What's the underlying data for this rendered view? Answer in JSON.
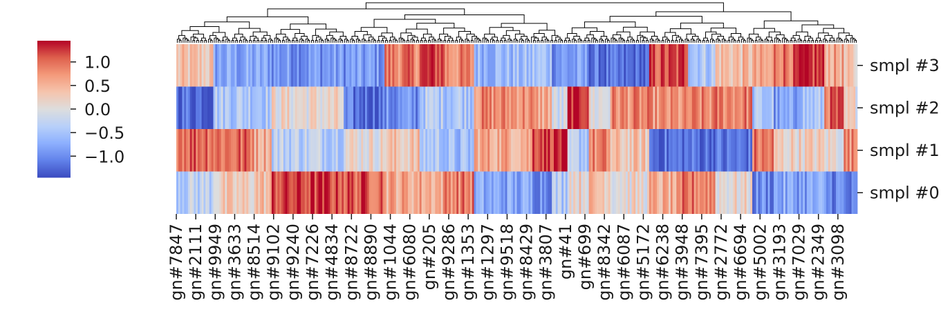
{
  "chart_data": {
    "type": "heatmap",
    "colormap": "coolwarm",
    "vmin": -1.45,
    "vmax": 1.45,
    "rows": [
      "smpl #3",
      "smpl #2",
      "smpl #1",
      "smpl #0"
    ],
    "colorbar": {
      "ticks": [
        1.0,
        0.5,
        0.0,
        -0.5,
        -1.0
      ],
      "tick_labels": [
        "1.0",
        "0.5",
        "0.0",
        "−0.5",
        "−1.0"
      ]
    },
    "x_tick_labels": [
      "gn#7847",
      "gn#2111",
      "gn#9949",
      "gn#3633",
      "gn#8514",
      "gn#9102",
      "gn#9240",
      "gn#7226",
      "gn#4834",
      "gn#8722",
      "gn#8890",
      "gn#1044",
      "gn#6080",
      "gn#205",
      "gn#9286",
      "gn#1353",
      "gn#1297",
      "gn#9518",
      "gn#8429",
      "gn#3807",
      "gn#41",
      "gn#699",
      "gn#8342",
      "gn#6087",
      "gn#5172",
      "gn#6238",
      "gn#3948",
      "gn#7395",
      "gn#2772",
      "gn#6694",
      "gn#5002",
      "gn#3193",
      "gn#7029",
      "gn#2349",
      "gn#3098"
    ],
    "blocks": [
      {
        "fraction": 0.053,
        "values": [
          0.3,
          -1.2,
          1.1,
          -0.3
        ]
      },
      {
        "fraction": 0.062,
        "values": [
          -0.8,
          -0.4,
          1.0,
          0.2
        ]
      },
      {
        "fraction": 0.024,
        "values": [
          -0.8,
          -0.4,
          0.6,
          0.4
        ]
      },
      {
        "fraction": 0.108,
        "values": [
          -0.9,
          0.1,
          -0.3,
          1.2
        ]
      },
      {
        "fraction": 0.058,
        "values": [
          -0.9,
          -1.2,
          0.1,
          1.1
        ]
      },
      {
        "fraction": 0.051,
        "values": [
          0.9,
          -1.0,
          0.3,
          0.6
        ]
      },
      {
        "fraction": 0.037,
        "values": [
          1.2,
          -0.4,
          -0.4,
          0.6
        ]
      },
      {
        "fraction": 0.044,
        "values": [
          0.8,
          -0.4,
          -0.6,
          0.9
        ]
      },
      {
        "fraction": 0.086,
        "values": [
          -0.6,
          0.8,
          0.6,
          -0.8
        ]
      },
      {
        "fraction": 0.029,
        "values": [
          -0.5,
          0.6,
          1.3,
          -0.9
        ]
      },
      {
        "fraction": 0.021,
        "values": [
          -0.9,
          -0.2,
          1.3,
          -0.4
        ]
      },
      {
        "fraction": 0.032,
        "values": [
          -0.9,
          1.4,
          -0.4,
          0.2
        ]
      },
      {
        "fraction": 0.033,
        "values": [
          -1.2,
          0.0,
          0.8,
          0.4
        ]
      },
      {
        "fraction": 0.057,
        "values": [
          -1.3,
          0.8,
          0.3,
          0.1
        ]
      },
      {
        "fraction": 0.047,
        "values": [
          1.1,
          0.7,
          -1.2,
          0.5
        ]
      },
      {
        "fraction": 0.01,
        "values": [
          1.3,
          0.7,
          -1.2,
          0.9
        ]
      },
      {
        "fraction": 0.04,
        "values": [
          -0.4,
          0.8,
          -1.2,
          0.9
        ]
      },
      {
        "fraction": 0.055,
        "values": [
          0.4,
          0.9,
          -1.2,
          0.1
        ]
      },
      {
        "fraction": 0.031,
        "values": [
          0.5,
          -0.5,
          0.9,
          -1.0
        ]
      },
      {
        "fraction": 0.033,
        "values": [
          1.0,
          -0.9,
          0.2,
          -0.8
        ]
      },
      {
        "fraction": 0.04,
        "values": [
          1.2,
          -0.5,
          0.2,
          -0.8
        ]
      },
      {
        "fraction": 0.029,
        "values": [
          0.6,
          1.0,
          0.1,
          -1.0
        ]
      },
      {
        "fraction": 0.021,
        "values": [
          0.2,
          0.1,
          0.8,
          -1.2
        ]
      }
    ]
  }
}
